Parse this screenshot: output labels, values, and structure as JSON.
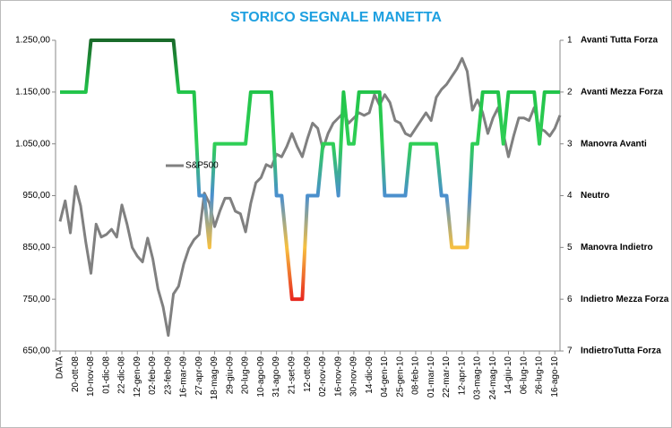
{
  "chart_data": {
    "type": "line",
    "title": "STORICO SEGNALE MANETTA",
    "categories": [
      "DATA",
      null,
      null,
      "20-ott-08",
      null,
      null,
      "10-nov-08",
      null,
      null,
      "01-dic-08",
      null,
      null,
      "22-dic-08",
      null,
      null,
      "12-gen-09",
      null,
      null,
      "02-feb-09",
      null,
      null,
      "23-feb-09",
      null,
      null,
      "16-mar-09",
      null,
      null,
      "27-apr-09",
      null,
      null,
      "18-mag-09",
      null,
      null,
      "29-giu-09",
      null,
      null,
      "20-lug-09",
      null,
      null,
      "10-ago-09",
      null,
      null,
      "31-ago-09",
      null,
      null,
      "21-set-09",
      null,
      null,
      "12-ott-09",
      null,
      null,
      "02-nov-09",
      null,
      null,
      "16-nov-09",
      null,
      null,
      "30-nov-09",
      null,
      null,
      "14-dic-09",
      null,
      null,
      "04-gen-10",
      null,
      null,
      "25-gen-10",
      null,
      null,
      "08-feb-10",
      null,
      null,
      "01-mar-10",
      null,
      null,
      "22-mar-10",
      null,
      null,
      "12-apr-10",
      null,
      null,
      "03-mag-10",
      null,
      null,
      "24-mag-10",
      null,
      null,
      "14-giu-10",
      null,
      null,
      "06-lug-10",
      null,
      null,
      "26-lug-10",
      null,
      null,
      "16-ago-10",
      null
    ],
    "series": [
      {
        "name": "S&P500",
        "color": "#808080",
        "values": [
          900,
          940,
          878,
          968,
          930,
          860,
          800,
          895,
          870,
          875,
          885,
          870,
          932,
          895,
          850,
          833,
          822,
          868,
          828,
          770,
          735,
          680,
          760,
          775,
          818,
          848,
          865,
          875,
          955,
          935,
          890,
          920,
          945,
          945,
          920,
          915,
          880,
          935,
          975,
          985,
          1010,
          1005,
          1030,
          1025,
          1045,
          1070,
          1045,
          1025,
          1060,
          1090,
          1080,
          1040,
          1070,
          1090,
          1100,
          1110,
          1090,
          1100,
          1110,
          1105,
          1110,
          1145,
          1125,
          1145,
          1130,
          1095,
          1090,
          1070,
          1065,
          1080,
          1095,
          1110,
          1095,
          1140,
          1155,
          1165,
          1180,
          1195,
          1215,
          1190,
          1115,
          1135,
          1110,
          1070,
          1100,
          1120,
          1070,
          1025,
          1065,
          1100,
          1100,
          1095,
          1120,
          1080,
          1075,
          1065,
          1080,
          1105
        ]
      },
      {
        "axis": "y2",
        "level_colors": [
          "#1a6a2a",
          "#22c44a",
          "#2fcf55",
          "#4a8fcf",
          "#f7c040",
          "#e8281e",
          "#c00000"
        ],
        "values": [
          2,
          2,
          2,
          2,
          2,
          2,
          1,
          1,
          1,
          1,
          1,
          1,
          1,
          1,
          1,
          1,
          1,
          1,
          1,
          1,
          1,
          1,
          1,
          2,
          2,
          2,
          2,
          4,
          4,
          5,
          3,
          3,
          3,
          3,
          3,
          3,
          3,
          2,
          2,
          2,
          2,
          2,
          4,
          4,
          5,
          6,
          6,
          6,
          4,
          4,
          4,
          3,
          3,
          3,
          4,
          2,
          3,
          3,
          2,
          2,
          2,
          2,
          2,
          4,
          4,
          4,
          4,
          4,
          3,
          3,
          3,
          3,
          3,
          3,
          4,
          4,
          5,
          5,
          5,
          5,
          3,
          3,
          2,
          2,
          2,
          2,
          3,
          2,
          2,
          2,
          2,
          2,
          2,
          3,
          2,
          2,
          2,
          2
        ]
      }
    ],
    "ylim": [
      650,
      1250
    ],
    "yticks": [
      {
        "value": 650,
        "label": "650,00"
      },
      {
        "value": 750,
        "label": "750,00"
      },
      {
        "value": 850,
        "label": "850,00"
      },
      {
        "value": 950,
        "label": "950,00"
      },
      {
        "value": 1050,
        "label": "1.050,00"
      },
      {
        "value": 1150,
        "label": "1.150,00"
      },
      {
        "value": 1250,
        "label": "1.250,00"
      }
    ],
    "y2lim": [
      7,
      1
    ],
    "y2ticks": [
      1,
      2,
      3,
      4,
      5,
      6,
      7
    ],
    "y2tick_names": [
      "Avanti Tutta  Forza",
      "Avanti Mezza  Forza",
      "Manovra Avanti",
      "Neutro",
      "Manovra Indietro",
      "Indietro Mezza Forza",
      "IndietroTutta  Forza"
    ],
    "grid": false
  }
}
